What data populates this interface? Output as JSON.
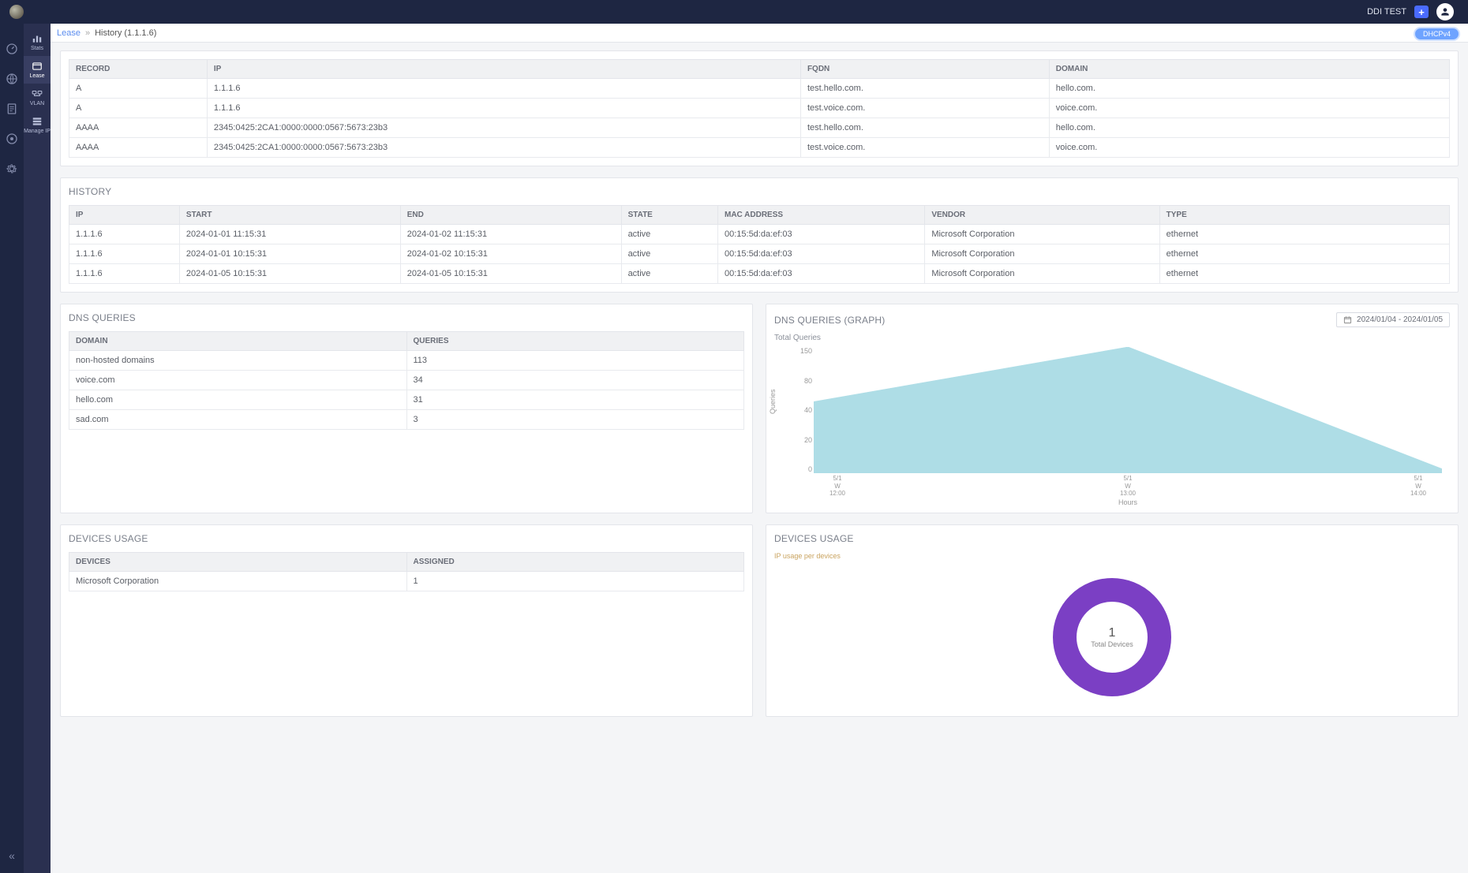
{
  "header": {
    "tenant": "DDI TEST",
    "plus": "+"
  },
  "rail": {
    "collapse_glyph": "«"
  },
  "subnav": {
    "items": [
      {
        "label": "Stats"
      },
      {
        "label": "Lease"
      },
      {
        "label": "VLAN"
      },
      {
        "label": "Manage IP"
      }
    ]
  },
  "breadcrumb": {
    "root": "Lease",
    "sep": "»",
    "current": "History (1.1.1.6)"
  },
  "badge": {
    "text": "DHCPv4"
  },
  "records_table": {
    "columns": [
      "RECORD",
      "IP",
      "FQDN",
      "DOMAIN"
    ],
    "rows": [
      [
        "A",
        "1.1.1.6",
        "test.hello.com.",
        "hello.com."
      ],
      [
        "A",
        "1.1.1.6",
        "test.voice.com.",
        "voice.com."
      ],
      [
        "AAAA",
        "2345:0425:2CA1:0000:0000:0567:5673:23b3",
        "test.hello.com.",
        "hello.com."
      ],
      [
        "AAAA",
        "2345:0425:2CA1:0000:0000:0567:5673:23b3",
        "test.voice.com.",
        "voice.com."
      ]
    ],
    "col_widths_pct": [
      10,
      43,
      18,
      29
    ]
  },
  "history": {
    "title": "HISTORY",
    "columns": [
      "IP",
      "START",
      "END",
      "STATE",
      "MAC ADDRESS",
      "VENDOR",
      "TYPE"
    ],
    "rows": [
      [
        "1.1.1.6",
        "2024-01-01 11:15:31",
        "2024-01-02 11:15:31",
        "active",
        "00:15:5d:da:ef:03",
        "Microsoft Corporation",
        "ethernet"
      ],
      [
        "1.1.1.6",
        "2024-01-01 10:15:31",
        "2024-01-02 10:15:31",
        "active",
        "00:15:5d:da:ef:03",
        "Microsoft Corporation",
        "ethernet"
      ],
      [
        "1.1.1.6",
        "2024-01-05 10:15:31",
        "2024-01-05 10:15:31",
        "active",
        "00:15:5d:da:ef:03",
        "Microsoft Corporation",
        "ethernet"
      ]
    ],
    "col_widths_pct": [
      8,
      16,
      16,
      7,
      15,
      17,
      21
    ]
  },
  "dns_queries": {
    "title": "DNS QUERIES",
    "columns": [
      "DOMAIN",
      "QUERIES"
    ],
    "rows": [
      [
        "non-hosted domains",
        "113"
      ],
      [
        "voice.com",
        "34"
      ],
      [
        "hello.com",
        "31"
      ],
      [
        "sad.com",
        "3"
      ]
    ],
    "col_widths_pct": [
      50,
      50
    ]
  },
  "dns_chart": {
    "title": "DNS QUERIES (GRAPH)",
    "date_range": "2024/01/04 - 2024/01/05",
    "subtitle": "Total Queries",
    "type": "area",
    "x_points": [
      "12:00",
      "13:00",
      "14:00"
    ],
    "x_sublabel": [
      "5/1",
      "5/1",
      "5/1"
    ],
    "x_midlabel": [
      "W",
      "W",
      "W"
    ],
    "y_values": [
      85,
      165,
      5
    ],
    "ylim": [
      0,
      150
    ],
    "yticks": [
      0,
      20,
      40,
      80,
      150
    ],
    "ylabel": "Queries",
    "xlabel": "Hours",
    "fill_color": "#aedde6",
    "stroke_color": "#aedde6",
    "background_color": "#ffffff",
    "axis_color": "#999999"
  },
  "devices_usage": {
    "title": "DEVICES USAGE",
    "columns": [
      "DEVICES",
      "ASSIGNED"
    ],
    "rows": [
      [
        "Microsoft Corporation",
        "1"
      ]
    ],
    "col_widths_pct": [
      50,
      50
    ]
  },
  "devices_chart": {
    "title": "DEVICES USAGE",
    "subtitle": "IP usage per devices",
    "type": "donut",
    "value": 1,
    "center_number": "1",
    "center_label": "Total Devices",
    "ring_color": "#7b3fc4",
    "inner_bg": "#ffffff",
    "outer_radius": 75,
    "inner_radius": 45
  }
}
